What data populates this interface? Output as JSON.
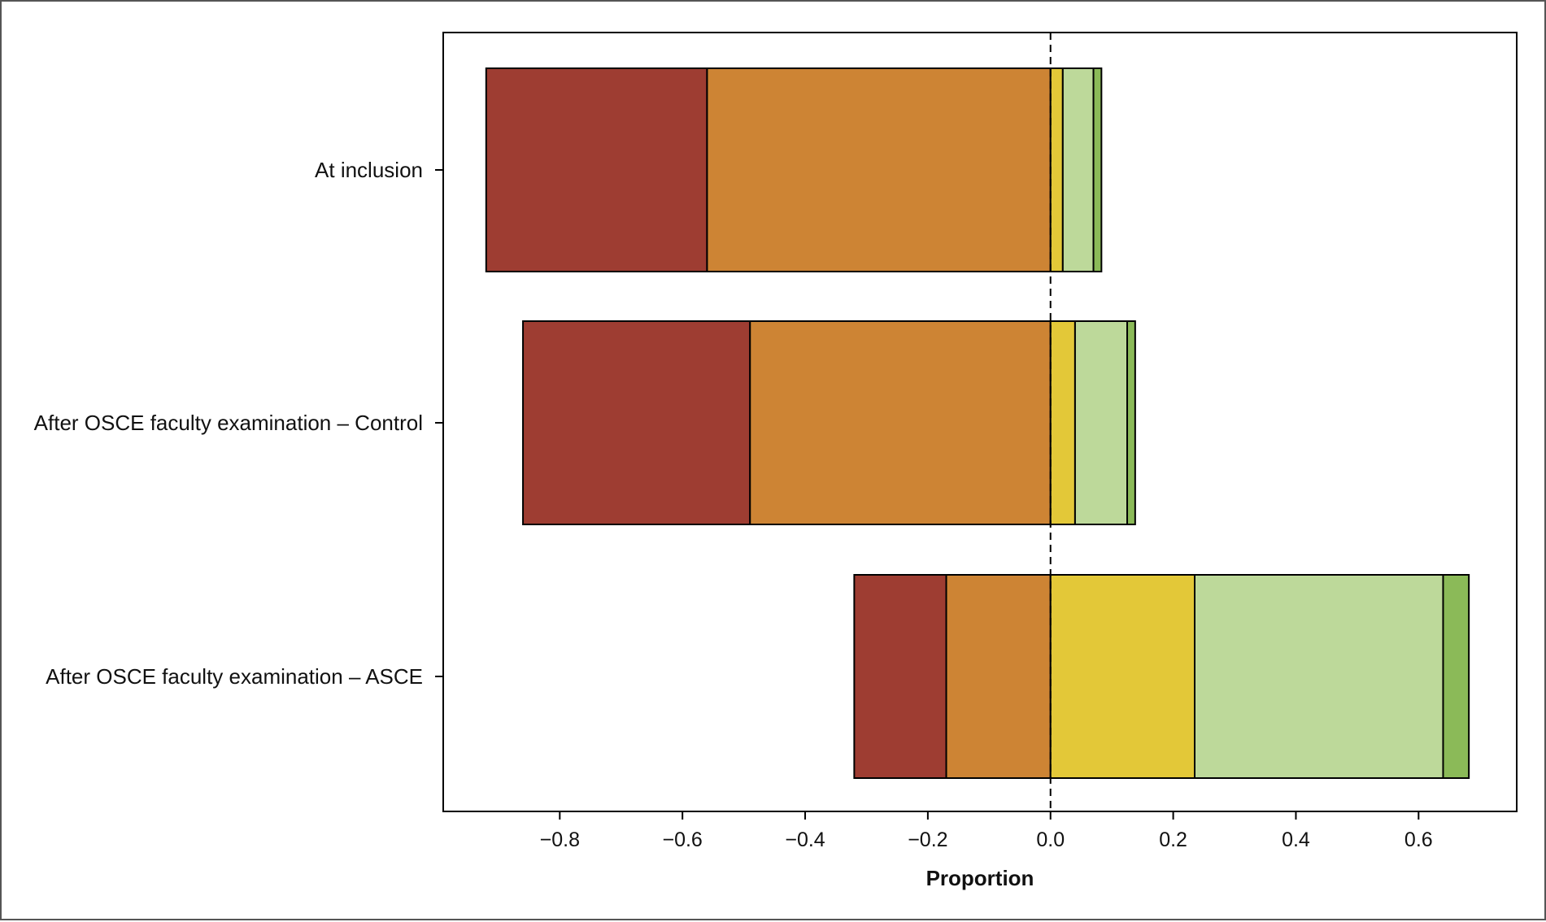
{
  "chart_data": {
    "type": "bar",
    "orientation": "horizontal",
    "stacked": "diverging",
    "title": "",
    "xlabel": "Proportion",
    "ylabel": "",
    "xlim": [
      -0.99,
      0.76
    ],
    "xticks": [
      -0.8,
      -0.6,
      -0.4,
      -0.2,
      0.0,
      0.2,
      0.4,
      0.6
    ],
    "xtick_labels": [
      "−0.8",
      "−0.6",
      "−0.4",
      "−0.2",
      "0.0",
      "0.2",
      "0.4",
      "0.6"
    ],
    "zero_line": "dashed",
    "grid": false,
    "legend": "none",
    "categories": [
      "At inclusion",
      "After OSCE faculty examination – Control",
      "After OSCE faculty examination – ASCE"
    ],
    "series": [
      {
        "color": "#9e3d32",
        "values": [
          -0.36,
          -0.37,
          -0.15
        ]
      },
      {
        "color": "#cd8434",
        "values": [
          -0.56,
          -0.49,
          -0.17
        ]
      },
      {
        "color": "#e3c838",
        "values": [
          0.02,
          0.04,
          0.235
        ]
      },
      {
        "color": "#bdd99a",
        "values": [
          0.05,
          0.085,
          0.405
        ]
      },
      {
        "color": "#8bba58",
        "values": [
          0.013,
          0.013,
          0.042
        ]
      }
    ]
  }
}
